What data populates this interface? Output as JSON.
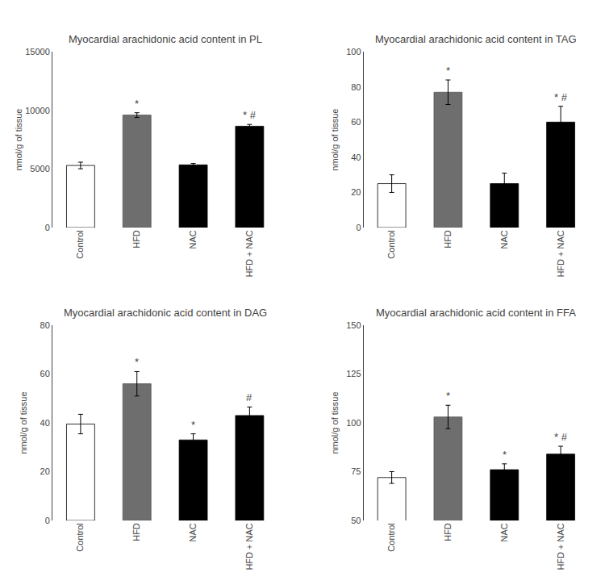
{
  "chart_data": [
    {
      "type": "bar",
      "title": "Myocardial arachidonic acid content in PL",
      "categories": [
        "Control",
        "HFD",
        "NAC",
        "HFD + NAC"
      ],
      "values": [
        5300,
        9600,
        5350,
        8650
      ],
      "errors": [
        280,
        200,
        120,
        150
      ],
      "colors": [
        "white",
        "#6e6e6e",
        "black",
        "black"
      ],
      "ylim": [
        0,
        15000
      ],
      "yticks": [
        0,
        5000,
        10000,
        15000
      ],
      "ylabel": "nmol/g of tissue",
      "annotations": [
        null,
        "*",
        null,
        "* #"
      ],
      "grid": false
    },
    {
      "type": "bar",
      "title": "Myocardial arachidonic acid content in TAG",
      "categories": [
        "Control",
        "HFD",
        "NAC",
        "HFD + NAC"
      ],
      "values": [
        25,
        77,
        25,
        60
      ],
      "errors": [
        5,
        7,
        6,
        9
      ],
      "colors": [
        "white",
        "#6e6e6e",
        "black",
        "black"
      ],
      "ylim": [
        0,
        100
      ],
      "yticks": [
        0,
        20,
        40,
        60,
        80,
        100
      ],
      "ylabel": "nmol/g of tissue",
      "annotations": [
        null,
        "*",
        null,
        "* #"
      ],
      "grid": false
    },
    {
      "type": "bar",
      "title": "Myocardial arachidonic acid content in DAG",
      "categories": [
        "Control",
        "HFD",
        "NAC",
        "HFD + NAC"
      ],
      "values": [
        39.5,
        56,
        33,
        43
      ],
      "errors": [
        4,
        5,
        2.5,
        3.5
      ],
      "colors": [
        "white",
        "#6e6e6e",
        "black",
        "black"
      ],
      "ylim": [
        0,
        80
      ],
      "yticks": [
        0,
        20,
        40,
        60,
        80
      ],
      "ylabel": "nmol/g of tissue",
      "annotations": [
        null,
        "*",
        "*",
        "#"
      ],
      "grid": false
    },
    {
      "type": "bar",
      "title": "Myocardial arachidonic acid content in FFA",
      "categories": [
        "Control",
        "HFD",
        "NAC",
        "HFD + NAC"
      ],
      "values": [
        72,
        103,
        76,
        84
      ],
      "errors": [
        3,
        6,
        3,
        4
      ],
      "colors": [
        "white",
        "#6e6e6e",
        "black",
        "black"
      ],
      "ylim": [
        50,
        150
      ],
      "yticks": [
        50,
        75,
        100,
        125,
        150
      ],
      "ylabel": "nmol/g of tissue",
      "annotations": [
        null,
        "*",
        "*",
        "* #"
      ],
      "grid": false
    }
  ]
}
